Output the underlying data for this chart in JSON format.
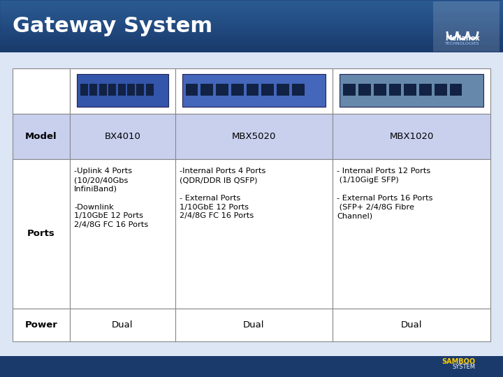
{
  "title": "Gateway System",
  "title_color": "#ffffff",
  "title_fontsize": 22,
  "header_bg": "#1a3a6b",
  "slide_bg": "#dce6f5",
  "table_bg": "#ffffff",
  "row_header_bg": "#c8d0f0",
  "col_header_bg": "#c8d0f0",
  "border_color": "#555555",
  "text_color": "#000000",
  "col_headers": [
    "",
    "BX4010",
    "MBX5020",
    "MBX1020"
  ],
  "row_labels": [
    "Model",
    "Ports",
    "Power"
  ],
  "cells": [
    [
      "BX4010",
      "MBX5020",
      "MBX1020"
    ],
    [
      "-Uplink 4 Ports\n(10/20/40Gbs\nInfiniBand)\n\n-Downlink\n1/10GbE 12 Ports\n2/4/8G FC 16 Ports",
      "-Internal Ports 4 Ports\n(QDR/DDR IB QSFP)\n\n- External Ports\n1/10GbE 12 Ports\n2/4/8G FC 16 Ports",
      "- Internal Ports 12 Ports\n (1/10GigE SFP)\n\n- External Ports 16 Ports\n (SFP+ 2/4/8G Fibre\nChannel)"
    ],
    [
      "Dual",
      "Dual",
      "Dual"
    ]
  ],
  "footer_bg": "#1a3a6b",
  "samboo_text": "SAMBOO\nSYSTEM",
  "samboo_color": "#ffcc00"
}
